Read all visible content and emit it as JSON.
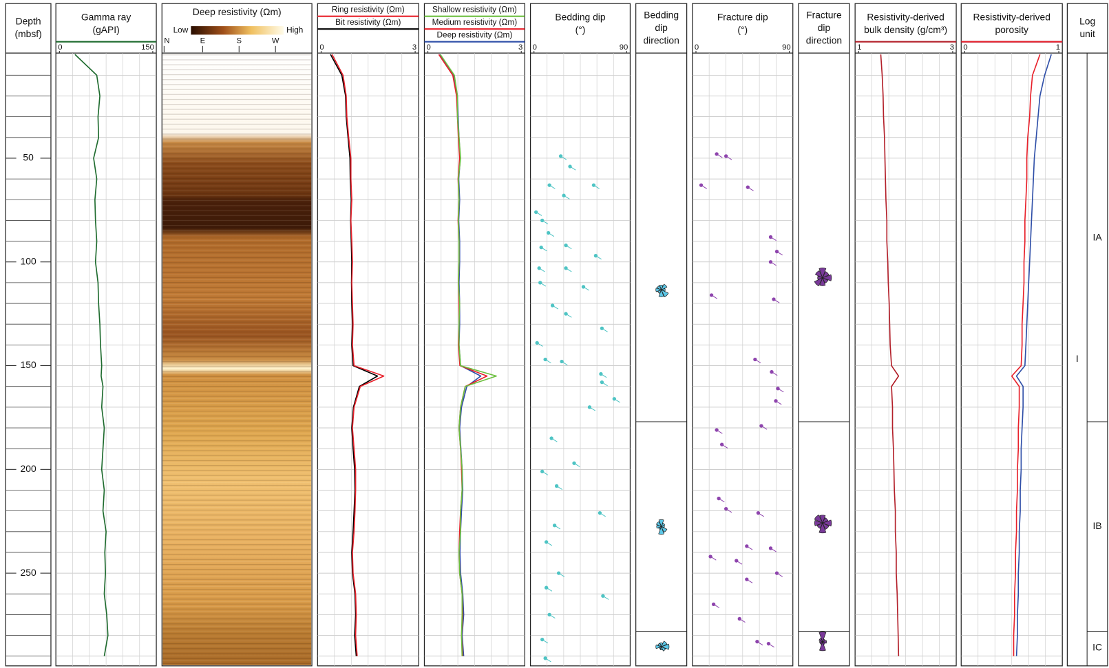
{
  "chart_data": [
    {
      "type": "depth",
      "title": [
        "Depth",
        "(mbsf)"
      ],
      "ylim": [
        0,
        294
      ],
      "yticks": [
        50,
        100,
        150,
        200,
        250
      ],
      "minor_yticks": [
        10,
        20,
        30,
        40,
        60,
        70,
        80,
        90,
        110,
        120,
        130,
        140,
        160,
        170,
        180,
        190,
        210,
        220,
        230,
        240,
        260,
        270,
        280,
        290
      ]
    },
    {
      "type": "line",
      "title": [
        "Gamma ray",
        "(gAPI)"
      ],
      "xlim": [
        0,
        150
      ],
      "xticks": [
        0,
        150
      ],
      "depth": [
        0,
        10,
        20,
        30,
        40,
        50,
        60,
        70,
        80,
        90,
        100,
        110,
        120,
        130,
        140,
        150,
        155,
        160,
        170,
        180,
        190,
        200,
        210,
        220,
        230,
        240,
        250,
        260,
        270,
        280,
        290
      ],
      "series": [
        {
          "color": "#1e6b2e",
          "values": [
            25,
            60,
            65,
            62,
            63,
            55,
            60,
            57,
            58,
            60,
            58,
            62,
            63,
            65,
            66,
            68,
            67,
            70,
            68,
            72,
            70,
            68,
            72,
            70,
            75,
            73,
            74,
            72,
            76,
            78,
            72
          ]
        }
      ]
    },
    {
      "type": "image",
      "title": [
        "Deep resistivity (Ωm)"
      ],
      "scale": [
        "Low",
        "High"
      ],
      "azimuths": [
        "N",
        "E",
        "S",
        "W"
      ]
    },
    {
      "type": "line",
      "xlim": [
        0,
        3
      ],
      "xticks": [
        0,
        3
      ],
      "depth": [
        0,
        10,
        20,
        30,
        40,
        50,
        60,
        70,
        80,
        90,
        100,
        110,
        120,
        130,
        140,
        150,
        155,
        160,
        170,
        180,
        190,
        200,
        210,
        220,
        230,
        240,
        250,
        260,
        270,
        280,
        290
      ],
      "series": [
        {
          "name": "Ring resistivity (Ωm)",
          "color": "#e8202a",
          "values": [
            0.35,
            0.7,
            0.8,
            0.82,
            0.88,
            0.95,
            0.95,
            0.98,
            0.95,
            0.98,
            1.0,
            0.98,
            1.0,
            1.02,
            1.0,
            1.05,
            2.0,
            1.25,
            1.05,
            1.0,
            1.05,
            1.1,
            1.1,
            1.08,
            1.05,
            1.0,
            1.02,
            1.1,
            1.12,
            1.1,
            1.15
          ]
        },
        {
          "name": "Bit resistivity (Ωm)",
          "color": "#000000",
          "values": [
            0.3,
            0.66,
            0.78,
            0.8,
            0.86,
            0.92,
            0.93,
            0.96,
            0.94,
            0.96,
            0.98,
            0.97,
            0.98,
            1.0,
            0.98,
            1.02,
            1.8,
            1.22,
            1.03,
            0.98,
            1.02,
            1.07,
            1.08,
            1.05,
            1.02,
            0.98,
            1.0,
            1.08,
            1.1,
            1.07,
            1.12
          ]
        }
      ]
    },
    {
      "type": "line",
      "xlim": [
        0,
        3
      ],
      "xticks": [
        0,
        3
      ],
      "depth": [
        0,
        10,
        20,
        30,
        40,
        50,
        60,
        70,
        80,
        90,
        100,
        110,
        120,
        130,
        140,
        150,
        155,
        160,
        170,
        180,
        190,
        200,
        210,
        220,
        230,
        240,
        250,
        260,
        270,
        280,
        290
      ],
      "series": [
        {
          "name": "Shallow resistivity (Ωm)",
          "color": "#6cbf3f",
          "values": [
            0.4,
            0.85,
            0.95,
            0.95,
            1.0,
            1.05,
            0.98,
            1.0,
            0.98,
            1.0,
            1.0,
            0.98,
            1.02,
            1.0,
            1.0,
            1.05,
            2.2,
            1.2,
            1.05,
            1.0,
            1.05,
            1.1,
            1.1,
            1.05,
            1.05,
            1.0,
            1.02,
            1.1,
            1.1,
            1.08,
            1.1
          ]
        },
        {
          "name": "Medium resistivity (Ωm)",
          "color": "#e8202a",
          "values": [
            0.35,
            0.8,
            0.92,
            0.95,
            0.98,
            1.02,
            0.97,
            1.0,
            0.97,
            1.0,
            1.0,
            0.98,
            1.0,
            1.0,
            0.98,
            1.03,
            1.9,
            1.2,
            1.05,
            1.0,
            1.05,
            1.08,
            1.1,
            1.05,
            1.02,
            1.0,
            1.02,
            1.1,
            1.12,
            1.08,
            1.12
          ]
        },
        {
          "name": "Deep resistivity (Ωm)",
          "color": "#2f4fa8",
          "values": [
            0.38,
            0.82,
            0.95,
            0.97,
            1.0,
            1.04,
            0.99,
            1.02,
            0.99,
            1.02,
            1.02,
            1.0,
            1.02,
            1.02,
            1.0,
            1.05,
            1.7,
            1.25,
            1.08,
            1.02,
            1.06,
            1.1,
            1.12,
            1.08,
            1.05,
            1.03,
            1.05,
            1.12,
            1.15,
            1.1,
            1.15
          ]
        }
      ]
    },
    {
      "type": "scatter",
      "title": [
        "Bedding dip",
        "(°)"
      ],
      "xlim": [
        0,
        90
      ],
      "xticks": [
        0,
        90
      ],
      "color": "#4ec4c4",
      "x": [
        26,
        35,
        15,
        58,
        29,
        2,
        8,
        14,
        7,
        31,
        60,
        5,
        31,
        6,
        48,
        18,
        31,
        66,
        3,
        11,
        27,
        65,
        66,
        78,
        54,
        17,
        39,
        8,
        22,
        64,
        20,
        12,
        24,
        12,
        67,
        15,
        8,
        11
      ],
      "y": [
        49,
        54,
        63,
        63,
        68,
        76,
        80,
        86,
        93,
        92,
        97,
        103,
        103,
        110,
        112,
        121,
        125,
        132,
        139,
        147,
        148,
        154,
        158,
        166,
        170,
        185,
        197,
        201,
        208,
        221,
        227,
        235,
        250,
        257,
        261,
        270,
        282,
        291
      ]
    },
    {
      "type": "rose",
      "title": [
        "Bedding",
        "dip",
        "direction"
      ],
      "color": "#5cc8e8"
    },
    {
      "type": "scatter",
      "title": [
        "Fracture dip",
        "(°)"
      ],
      "xlim": [
        0,
        90
      ],
      "xticks": [
        0,
        90
      ],
      "color": "#8e44ad",
      "x": [
        20,
        29,
        5,
        50,
        72,
        78,
        72,
        15,
        75,
        57,
        73,
        79,
        77,
        63,
        20,
        25,
        22,
        29,
        60,
        49,
        72,
        14,
        39,
        78,
        49,
        17,
        42,
        59,
        70
      ],
      "y": [
        48,
        49,
        63,
        64,
        88,
        95,
        100,
        116,
        118,
        147,
        153,
        161,
        167,
        179,
        181,
        188,
        214,
        219,
        221,
        237,
        238,
        242,
        244,
        250,
        253,
        265,
        272,
        283,
        284
      ]
    },
    {
      "type": "rose",
      "title": [
        "Fracture",
        "dip",
        "direction"
      ],
      "color": "#7a3a9a"
    },
    {
      "type": "line",
      "title": [
        "Resistivity-derived",
        "bulk density (g/cm³)"
      ],
      "xlim": [
        1,
        3
      ],
      "xticks": [
        1,
        3
      ],
      "depth": [
        0,
        10,
        20,
        30,
        40,
        50,
        60,
        70,
        80,
        90,
        100,
        110,
        120,
        130,
        140,
        150,
        155,
        160,
        170,
        180,
        190,
        200,
        210,
        220,
        230,
        240,
        250,
        260,
        270,
        280,
        290
      ],
      "series": [
        {
          "color": "#b3202a",
          "values": [
            1.47,
            1.5,
            1.52,
            1.53,
            1.55,
            1.56,
            1.57,
            1.58,
            1.6,
            1.6,
            1.62,
            1.63,
            1.65,
            1.66,
            1.67,
            1.7,
            1.85,
            1.7,
            1.72,
            1.72,
            1.74,
            1.75,
            1.76,
            1.78,
            1.78,
            1.8,
            1.8,
            1.82,
            1.83,
            1.84,
            1.85
          ]
        }
      ]
    },
    {
      "type": "line",
      "title": [
        "Resistivity-derived",
        "porosity"
      ],
      "xlim": [
        0,
        1
      ],
      "xticks": [
        0,
        1
      ],
      "depth": [
        0,
        10,
        20,
        30,
        40,
        50,
        60,
        70,
        80,
        90,
        100,
        110,
        120,
        130,
        140,
        150,
        155,
        160,
        170,
        180,
        190,
        200,
        210,
        220,
        230,
        240,
        250,
        260,
        270,
        280,
        290
      ],
      "series": [
        {
          "color": "#e8202a",
          "values": [
            0.8,
            0.72,
            0.7,
            0.69,
            0.67,
            0.66,
            0.66,
            0.65,
            0.64,
            0.64,
            0.63,
            0.63,
            0.62,
            0.61,
            0.61,
            0.6,
            0.5,
            0.58,
            0.58,
            0.57,
            0.57,
            0.56,
            0.56,
            0.55,
            0.55,
            0.54,
            0.54,
            0.53,
            0.53,
            0.52,
            0.52
          ]
        },
        {
          "color": "#2f4fa8",
          "values": [
            0.92,
            0.85,
            0.8,
            0.78,
            0.76,
            0.74,
            0.73,
            0.72,
            0.71,
            0.7,
            0.69,
            0.68,
            0.67,
            0.66,
            0.65,
            0.64,
            0.55,
            0.62,
            0.62,
            0.61,
            0.6,
            0.6,
            0.59,
            0.59,
            0.58,
            0.58,
            0.57,
            0.57,
            0.56,
            0.56,
            0.55
          ]
        }
      ]
    },
    {
      "type": "units",
      "title": [
        "Log",
        "unit"
      ],
      "units": [
        {
          "label": "I",
          "top": 0,
          "bottom": 294,
          "subunits": [
            {
              "label": "IA",
              "top": 0,
              "bottom": 177
            },
            {
              "label": "IB",
              "top": 177,
              "bottom": 278
            },
            {
              "label": "IC",
              "top": 278,
              "bottom": 294
            }
          ]
        }
      ]
    }
  ]
}
